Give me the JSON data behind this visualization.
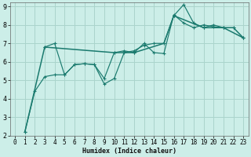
{
  "xlabel": "Humidex (Indice chaleur)",
  "bg_color": "#cceee8",
  "grid_color": "#aad4cc",
  "line_color": "#1a7a6e",
  "xlim": [
    -0.5,
    23.5
  ],
  "ylim": [
    2,
    9.2
  ],
  "yticks": [
    2,
    3,
    4,
    5,
    6,
    7,
    8,
    9
  ],
  "xticks": [
    0,
    1,
    2,
    3,
    4,
    5,
    6,
    7,
    8,
    9,
    10,
    11,
    12,
    13,
    14,
    15,
    16,
    17,
    18,
    19,
    20,
    21,
    22,
    23
  ],
  "s1_x": [
    1,
    2,
    3,
    4,
    5,
    6,
    7,
    8,
    9,
    10,
    11,
    12,
    13,
    14,
    15,
    16,
    17,
    18,
    19,
    20,
    21,
    22,
    23
  ],
  "s1_y": [
    2.2,
    4.4,
    5.2,
    5.3,
    5.3,
    5.85,
    5.9,
    5.85,
    4.8,
    5.1,
    6.5,
    6.6,
    6.9,
    7.0,
    7.0,
    8.5,
    9.1,
    8.1,
    7.85,
    8.0,
    7.85,
    7.85,
    7.3
  ],
  "s2_x": [
    3,
    4,
    5,
    6,
    7,
    8,
    9,
    10,
    11,
    12,
    13,
    14,
    15,
    16,
    17,
    18,
    19,
    20,
    21,
    22,
    23
  ],
  "s2_y": [
    6.8,
    7.0,
    5.3,
    5.85,
    5.9,
    5.85,
    5.1,
    6.5,
    6.6,
    6.5,
    7.0,
    6.5,
    6.45,
    8.55,
    8.1,
    7.85,
    8.0,
    7.9,
    7.85,
    7.85,
    7.3
  ],
  "s3_x": [
    1,
    3,
    10,
    12,
    15,
    16,
    19,
    21,
    23
  ],
  "s3_y": [
    2.2,
    6.8,
    6.5,
    6.5,
    7.0,
    8.5,
    7.85,
    7.85,
    7.3
  ],
  "marker_size": 3,
  "linewidth": 0.85,
  "tick_fontsize": 5.5,
  "xlabel_fontsize": 6.0
}
